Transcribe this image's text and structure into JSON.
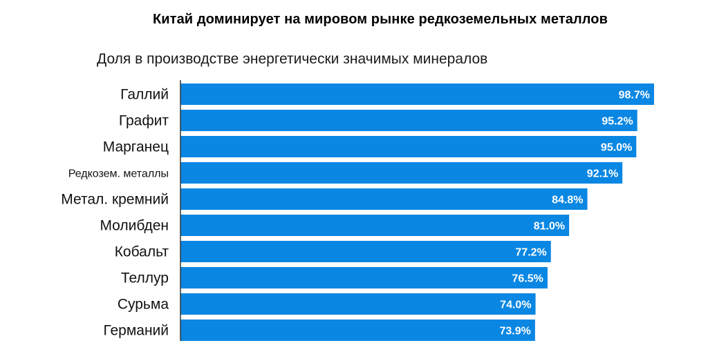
{
  "title": "Китай доминирует на мировом рынке редкоземельных металлов",
  "subtitle": "Доля в производстве энергетически значимых минералов",
  "colors": {
    "bar": "#0a86e3",
    "axis": "#333333",
    "label": "#ffffff"
  },
  "chart_data": {
    "type": "bar",
    "orientation": "horizontal",
    "categories": [
      "Галлий",
      "Графит",
      "Марганец",
      "Редкозем. металлы",
      "Метал. кремний",
      "Молибден",
      "Кобальт",
      "Теллур",
      "Сурьма",
      "Германий"
    ],
    "values": [
      98.7,
      95.2,
      95.0,
      92.1,
      84.8,
      81.0,
      77.2,
      76.5,
      74.0,
      73.9
    ],
    "value_labels": [
      "98.7%",
      "95.2%",
      "95.0%",
      "92.1%",
      "84.8%",
      "81.0%",
      "77.2%",
      "76.5%",
      "74.0%",
      "73.9%"
    ],
    "unit": "%",
    "xlim": [
      0,
      100
    ],
    "grid": false,
    "legend": "none"
  }
}
